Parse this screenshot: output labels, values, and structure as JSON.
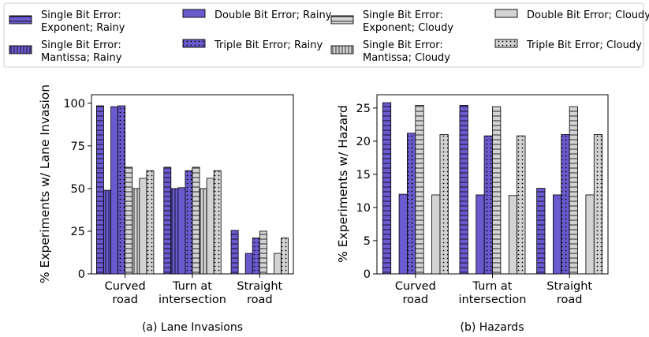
{
  "legend": {
    "items": [
      {
        "label": "Single Bit Error: Exponent; Rainy",
        "color": "#6a5acd",
        "pattern": "hstripes"
      },
      {
        "label": "Single Bit Error: Mantissa; Rainy",
        "color": "#6a5acd",
        "pattern": "vstripes"
      },
      {
        "label": "Double Bit Error; Rainy",
        "color": "#6a5acd",
        "pattern": "solid"
      },
      {
        "label": "Triple Bit Error; Rainy",
        "color": "#6a5acd",
        "pattern": "dots"
      },
      {
        "label": "Single Bit Error: Exponent; Cloudy",
        "color": "#d3d3d3",
        "pattern": "hstripes"
      },
      {
        "label": "Single Bit Error: Mantissa; Cloudy",
        "color": "#d3d3d3",
        "pattern": "vstripes"
      },
      {
        "label": "Double Bit Error; Cloudy",
        "color": "#d3d3d3",
        "pattern": "solid"
      },
      {
        "label": "Triple Bit Error; Cloudy",
        "color": "#d3d3d3",
        "pattern": "dots"
      }
    ]
  },
  "chart_data": [
    {
      "type": "bar",
      "caption": "(a) Lane Invasions",
      "ylabel": "% Experiments w/ Lane Invasion",
      "ylim": [
        0,
        105
      ],
      "yticks": [
        0,
        25,
        50,
        75,
        100
      ],
      "categories": [
        "Curved road",
        "Turn at intersection",
        "Straight road"
      ],
      "series": [
        {
          "name": "Single Bit Error: Exponent; Rainy",
          "values": [
            98.5,
            62.5,
            25.5
          ]
        },
        {
          "name": "Single Bit Error: Mantissa; Rainy",
          "values": [
            49,
            50,
            0
          ]
        },
        {
          "name": "Double Bit Error; Rainy",
          "values": [
            98,
            50.5,
            12
          ]
        },
        {
          "name": "Triple Bit Error; Rainy",
          "values": [
            98.5,
            60.5,
            21
          ]
        },
        {
          "name": "Single Bit Error: Exponent; Cloudy",
          "values": [
            62.5,
            62.5,
            25
          ]
        },
        {
          "name": "Single Bit Error: Mantissa; Cloudy",
          "values": [
            50,
            50,
            0
          ]
        },
        {
          "name": "Double Bit Error; Cloudy",
          "values": [
            56,
            56,
            12
          ]
        },
        {
          "name": "Triple Bit Error; Cloudy",
          "values": [
            60.5,
            60.5,
            21
          ]
        }
      ]
    },
    {
      "type": "bar",
      "caption": "(b) Hazards",
      "ylabel": "% Experiments w/ Hazard",
      "ylim": [
        0,
        27
      ],
      "yticks": [
        0,
        5,
        10,
        15,
        20,
        25
      ],
      "categories": [
        "Curved road",
        "Turn at intersection",
        "Straight road"
      ],
      "series": [
        {
          "name": "Single Bit Error: Exponent; Rainy",
          "values": [
            25.8,
            25.4,
            12.9
          ]
        },
        {
          "name": "Single Bit Error: Mantissa; Rainy",
          "values": [
            0,
            0,
            0
          ]
        },
        {
          "name": "Double Bit Error; Rainy",
          "values": [
            12,
            11.9,
            11.9
          ]
        },
        {
          "name": "Triple Bit Error; Rainy",
          "values": [
            21.2,
            20.8,
            21
          ]
        },
        {
          "name": "Single Bit Error: Exponent; Cloudy",
          "values": [
            25.4,
            25.2,
            25.2
          ]
        },
        {
          "name": "Single Bit Error: Mantissa; Cloudy",
          "values": [
            0,
            0,
            0
          ]
        },
        {
          "name": "Double Bit Error; Cloudy",
          "values": [
            11.9,
            11.8,
            11.9
          ]
        },
        {
          "name": "Triple Bit Error; Cloudy",
          "values": [
            21,
            20.8,
            21
          ]
        }
      ]
    }
  ]
}
